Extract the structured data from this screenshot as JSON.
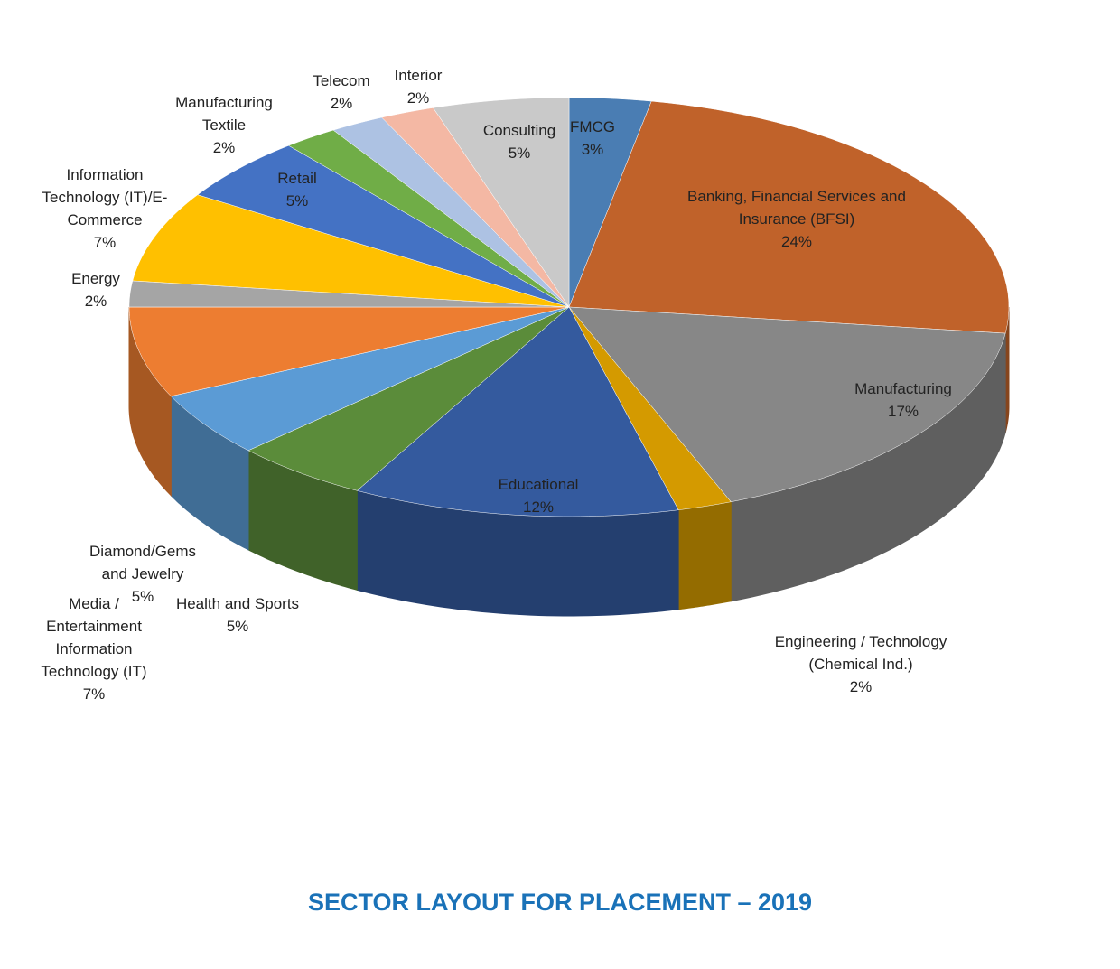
{
  "chart_data": {
    "type": "pie",
    "title": "SECTOR LAYOUT FOR PLACEMENT – 2019",
    "categories": [
      "FMCG",
      "Banking, Financial Services and Insurance (BFSI)",
      "Manufacturing",
      "Engineering / Technology (Chemical Ind.)",
      "Educational",
      "Health and Sports",
      "Diamond/Gems and Jewelry",
      "Media / Entertainment Information Technology (IT)",
      "Energy",
      "Information Technology (IT)/E-Commerce",
      "Retail",
      "Manufacturing Textile",
      "Telecom",
      "Interior",
      "Consulting"
    ],
    "values": [
      3,
      24,
      17,
      2,
      12,
      5,
      5,
      7,
      2,
      7,
      5,
      2,
      2,
      2,
      5
    ],
    "value_labels": [
      "3%",
      "24%",
      "17%",
      "2%",
      "12%",
      "5%",
      "5%",
      "7%",
      "2%",
      "7%",
      "5%",
      "2%",
      "2%",
      "2%",
      "5%"
    ],
    "colors": [
      "#4a7db3",
      "#c0622a",
      "#878787",
      "#d49a00",
      "#345a9e",
      "#5b8c3a",
      "#5b9bd5",
      "#ed7d31",
      "#a5a5a5",
      "#ffc000",
      "#4472c4",
      "#70ad47",
      "#adc2e3",
      "#f4b8a4",
      "#c9c9c9"
    ]
  }
}
